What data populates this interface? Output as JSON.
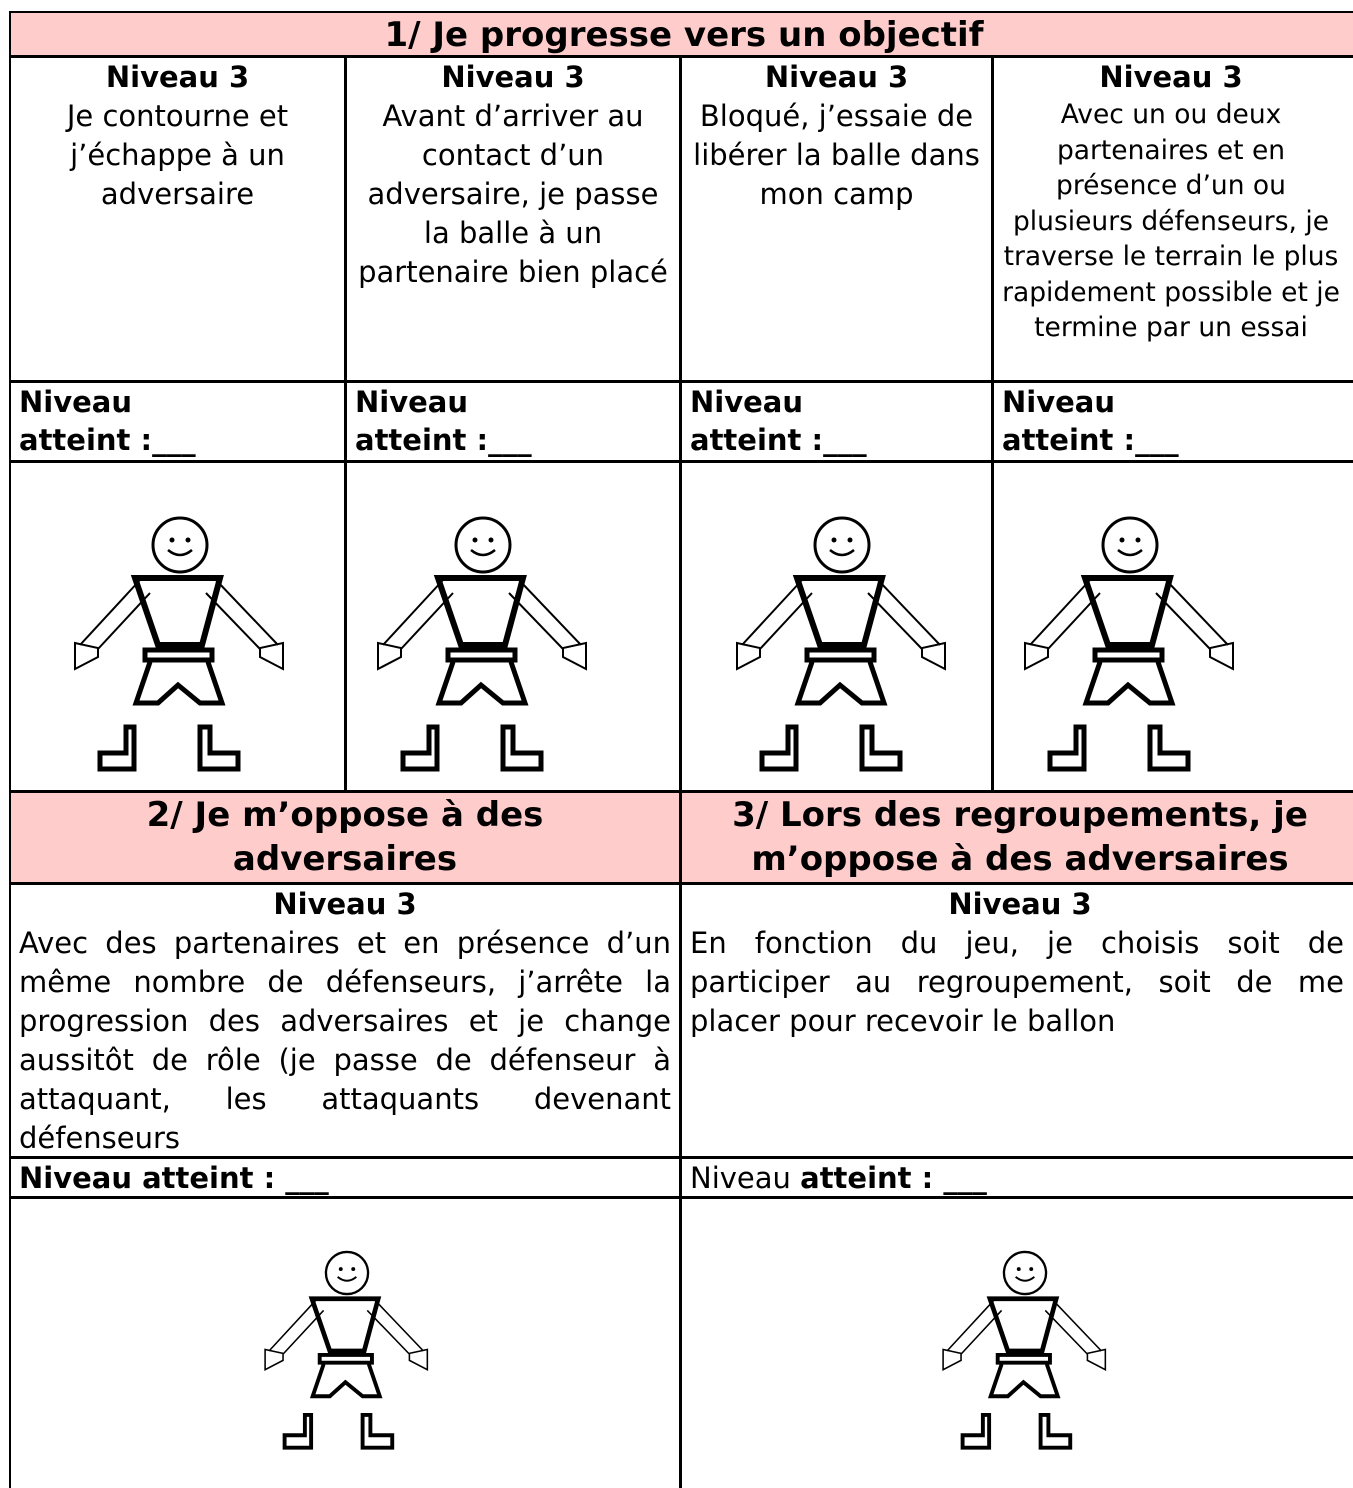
{
  "section1": {
    "title": "1/ Je progresse vers un objectif",
    "columns": [
      {
        "level": "Niveau 3",
        "description": "Je contourne et j’échappe à un adversaire",
        "achieved": "Niveau atteint :___"
      },
      {
        "level": "Niveau 3",
        "description": "Avant d’arriver au contact d’un adversaire, je passe la balle à un partenaire bien placé",
        "achieved": "Niveau atteint :___"
      },
      {
        "level": "Niveau 3",
        "description": "Bloqué, j’essaie de libérer la balle dans mon camp",
        "achieved": "Niveau atteint :___"
      },
      {
        "level": "Niveau 3",
        "description": "Avec un ou deux partenaires et en présence d’un ou plusieurs défenseurs, je traverse le terrain le plus rapidement possible et je termine par un essai",
        "achieved": "Niveau atteint :___"
      }
    ]
  },
  "section2": {
    "title": "2/ Je m’oppose à des adversaires",
    "level": "Niveau 3",
    "description": "Avec des partenaires et en présence d’un même nombre de défenseurs, j’arrête la progression des adversaires et je change aussitôt de rôle (je passe de défenseur à attaquant, les attaquants devenant défenseurs",
    "achieved": "Niveau atteint : ___"
  },
  "section3": {
    "title": "3/ Lors des regroupements,  je m’oppose à des adversaires",
    "level": "Niveau 3",
    "description": "En fonction du jeu, je choisis soit de participer au regroupement, soit de me placer pour recevoir le ballon",
    "achieved_prefix": "Niveau",
    "achieved": "atteint : ___"
  }
}
